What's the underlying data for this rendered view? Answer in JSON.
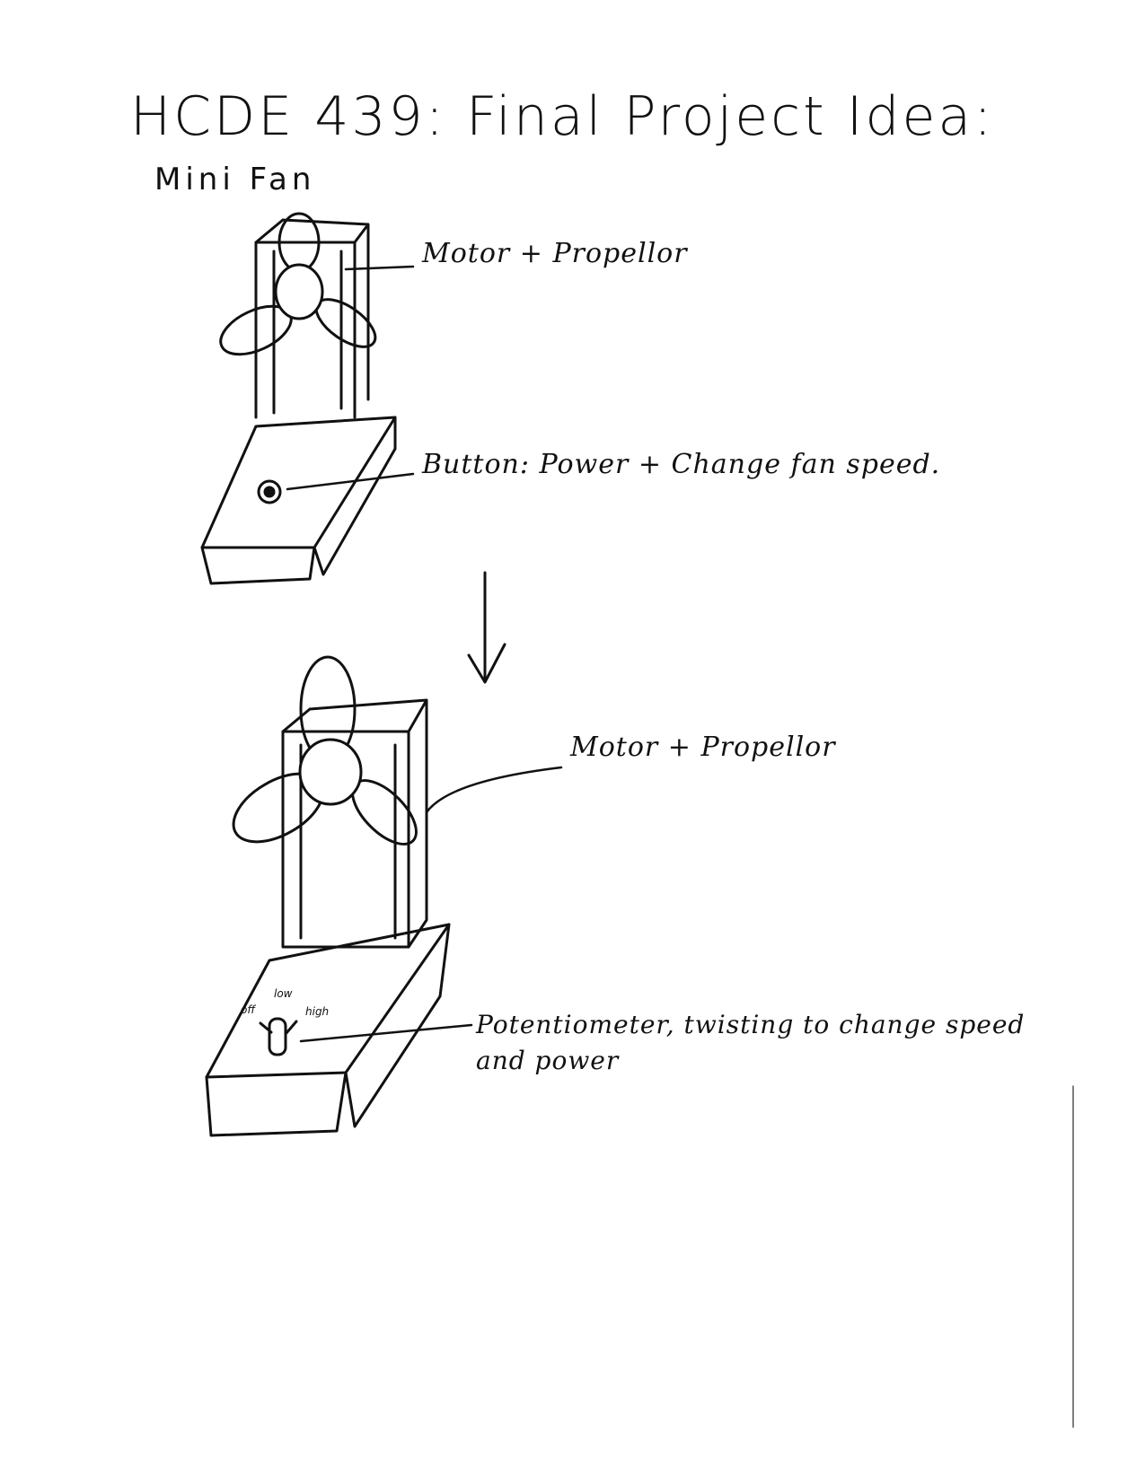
{
  "title": "HCDE 439: Final Project Idea:",
  "subtitle": "Mini Fan",
  "design1": {
    "label_motor": "Motor + Propellor",
    "label_button": "Button: Power + Change fan speed."
  },
  "design2": {
    "label_motor": "Motor + Propellor",
    "label_pot_line1": "Potentiometer, twisting to change speed",
    "label_pot_line2": "and power",
    "dial_off": "off",
    "dial_low": "low",
    "dial_high": "high"
  },
  "ink_color": "#111111"
}
